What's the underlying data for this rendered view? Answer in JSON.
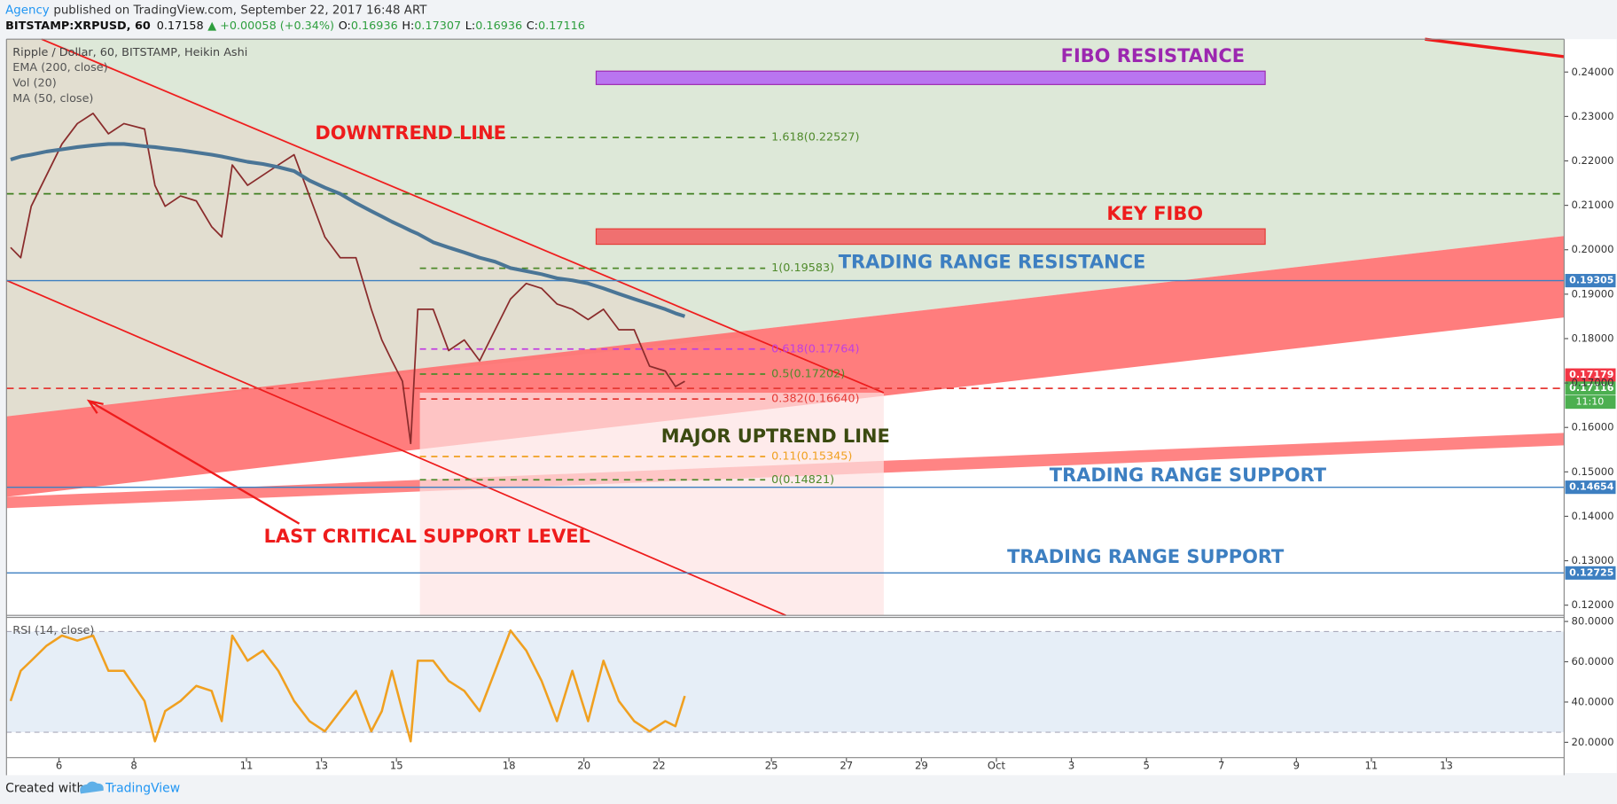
{
  "header": {
    "author": "Agency",
    "published": "published on TradingView.com, September 22, 2017 16:48 ART",
    "symbol": "BITSTAMP:XRPUSD, 60",
    "last": "0.17158",
    "change": "▲ +0.00058 (+0.34%)",
    "ohlc": [
      {
        "key": "O:",
        "value": "0.16936"
      },
      {
        "key": "H:",
        "value": "0.17307"
      },
      {
        "key": "L:",
        "value": "0.16936"
      },
      {
        "key": "C:",
        "value": "0.17116"
      }
    ]
  },
  "chart_data": [
    {
      "type": "line",
      "title": "Ripple / Dollar, 60, BITSTAMP, Heikin Ashi",
      "indicators": [
        "Vol (20)",
        "MA (50, close)"
      ],
      "x": [
        4.71,
        4.98,
        5.26,
        5.67,
        6.08,
        6.49,
        6.91,
        7.32,
        7.73,
        8.28,
        8.56,
        8.83,
        9.24,
        9.66,
        10.07,
        10.34,
        10.62,
        11.03,
        11.44,
        11.85,
        12.27,
        12.68,
        13.09,
        13.5,
        13.92,
        14.33,
        14.61,
        14.88,
        15.16,
        15.38,
        15.57,
        15.98,
        16.39,
        16.81,
        17.22,
        17.63,
        18.04,
        18.46,
        18.87,
        19.28,
        19.69,
        20.11,
        20.52,
        20.93,
        21.34,
        21.75,
        22.17,
        22.44,
        22.69
      ],
      "series": [
        {
          "color": "#8a2c2c",
          "values": [
            0.2005,
            0.1982,
            0.2098,
            0.2168,
            0.2238,
            0.2284,
            0.2307,
            0.2261,
            0.2284,
            0.2272,
            0.2145,
            0.2098,
            0.2121,
            0.211,
            0.2052,
            0.2029,
            0.2191,
            0.2145,
            0.2168,
            0.2191,
            0.2214,
            0.2121,
            0.2029,
            0.1982,
            0.1982,
            0.1866,
            0.1797,
            0.175,
            0.1704,
            0.1564,
            0.1866,
            0.1866,
            0.1773,
            0.1797,
            0.175,
            0.182,
            0.1889,
            0.1924,
            0.1913,
            0.1878,
            0.1866,
            0.1843,
            0.1866,
            0.182,
            0.182,
            0.1738,
            0.1727,
            0.1692,
            0.1704
          ]
        },
        {
          "name": "EMA (200, close)",
          "color": "#4a7596",
          "values": [
            0.2203,
            0.221,
            0.2214,
            0.2221,
            0.2226,
            0.2231,
            0.2235,
            0.2238,
            0.2238,
            0.2233,
            0.2231,
            0.2228,
            0.2224,
            0.2219,
            0.2214,
            0.221,
            0.2205,
            0.2198,
            0.2193,
            0.2186,
            0.2177,
            0.2156,
            0.214,
            0.2126,
            0.2105,
            0.2087,
            0.2075,
            0.2063,
            0.2052,
            0.2043,
            0.2036,
            0.2017,
            0.2005,
            0.1994,
            0.1982,
            0.1973,
            0.1959,
            0.1952,
            0.1945,
            0.1936,
            0.1931,
            0.1924,
            0.1913,
            0.1901,
            0.1889,
            0.1878,
            0.1866,
            0.1857,
            0.185
          ]
        }
      ],
      "xlim": [
        4.6,
        46.14
      ],
      "xticks": [
        6,
        8,
        11,
        13,
        15,
        18,
        20,
        22,
        25,
        27,
        29,
        {
          "value": 31,
          "label": "Oct"
        },
        {
          "value": 33,
          "label": "3"
        },
        {
          "value": 35,
          "label": "5"
        },
        {
          "value": 37,
          "label": "7"
        },
        {
          "value": 39,
          "label": "9"
        },
        {
          "value": 41,
          "label": "11"
        },
        {
          "value": 43,
          "label": "13"
        }
      ],
      "ylim": [
        0.1177,
        0.2474
      ],
      "yticks": [
        {
          "value": 0.12,
          "label": "0.12000"
        },
        {
          "value": 0.13,
          "label": "0.13000"
        },
        {
          "value": 0.14,
          "label": "0.14000"
        },
        {
          "value": 0.15,
          "label": "0.15000"
        },
        {
          "value": 0.16,
          "label": "0.16000"
        },
        {
          "value": 0.17,
          "label": "0.17000"
        },
        {
          "value": 0.18,
          "label": "0.18000"
        },
        {
          "value": 0.19,
          "label": "0.19000"
        },
        {
          "value": 0.2,
          "label": "0.20000"
        },
        {
          "value": 0.21,
          "label": "0.21000"
        },
        {
          "value": 0.22,
          "label": "0.22000"
        },
        {
          "value": 0.23,
          "label": "0.23000"
        },
        {
          "value": 0.24,
          "label": "0.24000"
        }
      ],
      "levels": [
        {
          "value": 0.19305,
          "label": "0.19305",
          "color": "#3d7fc1"
        },
        {
          "value": 0.14654,
          "label": "0.14654",
          "color": "#3d7fc1"
        },
        {
          "value": 0.12725,
          "label": "0.12725",
          "color": "#3d7fc1"
        },
        {
          "value": 0.2126,
          "color": "#3f7f1f",
          "dashed": true
        },
        {
          "value": 0.1688,
          "color": "#e53935",
          "dashed": true
        }
      ],
      "price_tags": [
        {
          "value": 0.17179,
          "label": "0.17179",
          "color": "#f23645"
        },
        {
          "value": 0.17116,
          "label": "0.17116",
          "color": "#4caf50",
          "sub": "11:10"
        }
      ],
      "fib_levels": [
        {
          "label": "1.618(0.22527)",
          "value": 0.22527,
          "color": "#4f8a2b"
        },
        {
          "label": "1(0.19583)",
          "value": 0.19583,
          "color": "#4f8a2b"
        },
        {
          "label": "0.618(0.17764)",
          "value": 0.17764,
          "color": "#c13ee0"
        },
        {
          "label": "0.5(0.17202)",
          "value": 0.17202,
          "color": "#4f8a2b"
        },
        {
          "label": "0.382(0.16640)",
          "value": 0.1664,
          "color": "#e53935"
        },
        {
          "label": "0.11(0.15345)",
          "value": 0.15345,
          "color": "#f0a020"
        },
        {
          "label": "0(0.14821)",
          "value": 0.14821,
          "color": "#4f8a2b"
        }
      ],
      "annotations": [
        "FIBO RESISTANCE",
        "KEY FIBO",
        "TRADING RANGE RESISTANCE",
        "DOWNTREND LINE",
        "MAJOR UPTREND LINE",
        "TRADING RANGE SUPPORT",
        "TRADING RANGE SUPPORT",
        "LAST CRITICAL SUPPORT LEVEL"
      ]
    },
    {
      "type": "line",
      "title": "RSI (14, close)",
      "x": [
        4.71,
        4.98,
        5.26,
        5.67,
        6.08,
        6.49,
        6.91,
        7.32,
        7.73,
        8.28,
        8.56,
        8.83,
        9.24,
        9.66,
        10.07,
        10.34,
        10.62,
        11.03,
        11.44,
        11.85,
        12.27,
        12.68,
        13.09,
        13.5,
        13.92,
        14.33,
        14.61,
        14.88,
        15.16,
        15.38,
        15.57,
        15.98,
        16.39,
        16.81,
        17.22,
        17.63,
        18.04,
        18.46,
        18.87,
        19.28,
        19.69,
        20.11,
        20.52,
        20.93,
        21.34,
        21.75,
        22.17,
        22.44,
        22.69
      ],
      "series": [
        {
          "color": "#f0a020",
          "values": [
            40.5,
            55.5,
            60.5,
            68,
            73,
            70.5,
            73,
            55.5,
            55.5,
            40.5,
            20.5,
            35.5,
            40.5,
            48,
            45.5,
            30.5,
            73,
            60.5,
            65.5,
            55.5,
            40.5,
            30.5,
            25.5,
            35.5,
            45.5,
            25.5,
            35.5,
            55.5,
            35.5,
            20.5,
            60.5,
            60.5,
            50.5,
            45.5,
            35.5,
            55.5,
            75.5,
            65.5,
            50.5,
            30.5,
            55.5,
            30.5,
            60.5,
            40.5,
            30.5,
            25.5,
            30.5,
            28,
            43
          ]
        }
      ],
      "ylim": [
        12.4,
        82
      ],
      "yticks": [
        {
          "value": 20,
          "label": "20.0000"
        },
        {
          "value": 40,
          "label": "40.0000"
        },
        {
          "value": 60,
          "label": "60.0000"
        },
        {
          "value": 80,
          "label": "80.0000"
        }
      ],
      "bands": [
        25,
        75
      ]
    }
  ],
  "footer": {
    "created": "Created with",
    "brand": "TradingView"
  }
}
